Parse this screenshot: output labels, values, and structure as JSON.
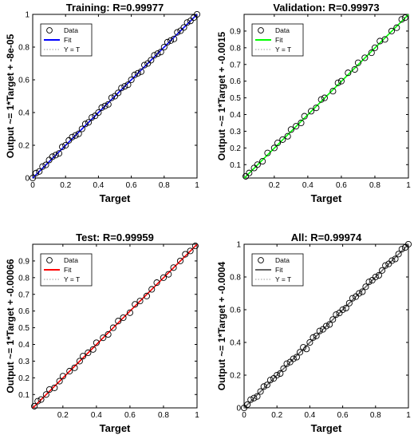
{
  "figure": {
    "panels": [
      {
        "key": "training",
        "title": "Training: R=0.99977",
        "ylabel": "Output ~= 1*Target + -8e-05",
        "xlabel": "Target",
        "xticks": [
          "0",
          "0.2",
          "0.4",
          "0.6",
          "0.8",
          "1"
        ],
        "yticks": [
          "0",
          "0.2",
          "0.4",
          "0.6",
          "0.8",
          "1"
        ],
        "legend": {
          "data": "Data",
          "fit": "Fit",
          "yt": "Y = T"
        }
      },
      {
        "key": "validation",
        "title": "Validation: R=0.99973",
        "ylabel": "Output ~= 1*Target + -0.0015",
        "xlabel": "Target",
        "xticks": [
          "0.2",
          "0.4",
          "0.6",
          "0.8",
          "1"
        ],
        "yticks": [
          "0.1",
          "0.2",
          "0.3",
          "0.4",
          "0.5",
          "0.6",
          "0.7",
          "0.8",
          "0.9"
        ],
        "legend": {
          "data": "Data",
          "fit": "Fit",
          "yt": "Y = T"
        }
      },
      {
        "key": "test",
        "title": "Test: R=0.99959",
        "ylabel": "Output ~= 1*Target + -0.00066",
        "xlabel": "Target",
        "xticks": [
          "0.2",
          "0.4",
          "0.6",
          "0.8",
          "1"
        ],
        "yticks": [
          "0.1",
          "0.2",
          "0.3",
          "0.4",
          "0.5",
          "0.6",
          "0.7",
          "0.8",
          "0.9"
        ],
        "legend": {
          "data": "Data",
          "fit": "Fit",
          "yt": "Y = T"
        }
      },
      {
        "key": "all",
        "title": "All: R=0.99974",
        "ylabel": "Output ~= 1*Target + -0.0004",
        "xlabel": "Target",
        "xticks": [
          "0",
          "0.2",
          "0.4",
          "0.6",
          "0.8",
          "1"
        ],
        "yticks": [
          "0",
          "0.2",
          "0.4",
          "0.6",
          "0.8",
          "1"
        ],
        "legend": {
          "data": "Data",
          "fit": "Fit",
          "yt": "Y = T"
        }
      }
    ]
  },
  "chart_data": [
    {
      "type": "scatter",
      "title": "Training: R=0.99977",
      "xlabel": "Target",
      "ylabel": "Output ~= 1*Target + -8e-05",
      "xlim": [
        0,
        1
      ],
      "ylim": [
        0,
        1
      ],
      "grid": false,
      "legend_position": "top-left",
      "fit": {
        "slope": 1,
        "intercept": -8e-05,
        "color": "#0000ff"
      },
      "identity_line_color": "#999999",
      "marker_color": "#000000",
      "series": [
        {
          "name": "Data",
          "x": [
            0.0,
            0.02,
            0.04,
            0.06,
            0.08,
            0.1,
            0.12,
            0.14,
            0.16,
            0.18,
            0.2,
            0.22,
            0.24,
            0.26,
            0.28,
            0.3,
            0.32,
            0.34,
            0.36,
            0.38,
            0.4,
            0.42,
            0.44,
            0.46,
            0.48,
            0.5,
            0.52,
            0.54,
            0.56,
            0.58,
            0.6,
            0.62,
            0.64,
            0.66,
            0.68,
            0.7,
            0.72,
            0.74,
            0.76,
            0.78,
            0.8,
            0.82,
            0.84,
            0.86,
            0.88,
            0.9,
            0.92,
            0.94,
            0.96,
            0.98,
            1.0
          ],
          "y": [
            0.0,
            0.03,
            0.04,
            0.07,
            0.08,
            0.11,
            0.13,
            0.14,
            0.15,
            0.19,
            0.2,
            0.23,
            0.25,
            0.26,
            0.27,
            0.3,
            0.33,
            0.34,
            0.37,
            0.38,
            0.4,
            0.43,
            0.44,
            0.45,
            0.49,
            0.5,
            0.52,
            0.55,
            0.56,
            0.57,
            0.6,
            0.63,
            0.64,
            0.65,
            0.69,
            0.7,
            0.72,
            0.75,
            0.76,
            0.77,
            0.8,
            0.83,
            0.84,
            0.85,
            0.89,
            0.9,
            0.92,
            0.95,
            0.96,
            0.98,
            1.0
          ]
        }
      ]
    },
    {
      "type": "scatter",
      "title": "Validation: R=0.99973",
      "xlabel": "Target",
      "ylabel": "Output ~= 1*Target + -0.0015",
      "xlim": [
        0.02,
        1
      ],
      "ylim": [
        0.02,
        1
      ],
      "grid": false,
      "legend_position": "top-left",
      "fit": {
        "slope": 1,
        "intercept": -0.0015,
        "color": "#00ff00"
      },
      "identity_line_color": "#999999",
      "marker_color": "#000000",
      "series": [
        {
          "name": "Data",
          "x": [
            0.03,
            0.05,
            0.08,
            0.1,
            0.13,
            0.16,
            0.2,
            0.22,
            0.25,
            0.28,
            0.3,
            0.33,
            0.36,
            0.38,
            0.42,
            0.45,
            0.48,
            0.5,
            0.55,
            0.58,
            0.6,
            0.64,
            0.68,
            0.7,
            0.74,
            0.78,
            0.8,
            0.83,
            0.86,
            0.9,
            0.93,
            0.96,
            0.98
          ],
          "y": [
            0.03,
            0.05,
            0.08,
            0.1,
            0.12,
            0.17,
            0.2,
            0.23,
            0.25,
            0.27,
            0.31,
            0.33,
            0.35,
            0.39,
            0.42,
            0.44,
            0.49,
            0.5,
            0.54,
            0.59,
            0.6,
            0.65,
            0.67,
            0.71,
            0.74,
            0.77,
            0.8,
            0.84,
            0.85,
            0.9,
            0.92,
            0.97,
            0.98
          ]
        }
      ]
    },
    {
      "type": "scatter",
      "title": "Test: R=0.99959",
      "xlabel": "Target",
      "ylabel": "Output ~= 1*Target + -0.00066",
      "xlim": [
        0.02,
        1
      ],
      "ylim": [
        0.02,
        1
      ],
      "grid": false,
      "legend_position": "top-left",
      "fit": {
        "slope": 1,
        "intercept": -0.00066,
        "color": "#ff0000"
      },
      "identity_line_color": "#999999",
      "marker_color": "#000000",
      "series": [
        {
          "name": "Data",
          "x": [
            0.03,
            0.05,
            0.07,
            0.1,
            0.12,
            0.15,
            0.18,
            0.2,
            0.24,
            0.27,
            0.3,
            0.32,
            0.35,
            0.38,
            0.4,
            0.44,
            0.47,
            0.5,
            0.53,
            0.56,
            0.6,
            0.63,
            0.66,
            0.7,
            0.73,
            0.76,
            0.8,
            0.83,
            0.86,
            0.9,
            0.93,
            0.96,
            0.99
          ],
          "y": [
            0.03,
            0.06,
            0.07,
            0.1,
            0.13,
            0.14,
            0.18,
            0.21,
            0.24,
            0.26,
            0.3,
            0.33,
            0.35,
            0.37,
            0.41,
            0.44,
            0.46,
            0.5,
            0.54,
            0.56,
            0.59,
            0.64,
            0.66,
            0.69,
            0.73,
            0.77,
            0.8,
            0.82,
            0.86,
            0.9,
            0.94,
            0.96,
            0.99
          ]
        }
      ]
    },
    {
      "type": "scatter",
      "title": "All: R=0.99974",
      "xlabel": "Target",
      "ylabel": "Output ~= 1*Target + -0.0004",
      "xlim": [
        0,
        1
      ],
      "ylim": [
        0,
        1
      ],
      "grid": false,
      "legend_position": "top-left",
      "fit": {
        "slope": 1,
        "intercept": -0.0004,
        "color": "#666666"
      },
      "identity_line_color": "#999999",
      "marker_color": "#000000",
      "series": [
        {
          "name": "Data",
          "x": [
            0.0,
            0.02,
            0.04,
            0.06,
            0.08,
            0.1,
            0.12,
            0.14,
            0.16,
            0.18,
            0.2,
            0.22,
            0.24,
            0.26,
            0.28,
            0.3,
            0.32,
            0.34,
            0.36,
            0.38,
            0.4,
            0.42,
            0.44,
            0.46,
            0.48,
            0.5,
            0.52,
            0.54,
            0.56,
            0.58,
            0.6,
            0.62,
            0.64,
            0.66,
            0.68,
            0.7,
            0.72,
            0.74,
            0.76,
            0.78,
            0.8,
            0.82,
            0.84,
            0.86,
            0.88,
            0.9,
            0.92,
            0.94,
            0.96,
            0.98,
            1.0
          ],
          "y": [
            0.0,
            0.02,
            0.05,
            0.06,
            0.07,
            0.1,
            0.13,
            0.14,
            0.17,
            0.18,
            0.2,
            0.21,
            0.24,
            0.27,
            0.28,
            0.3,
            0.31,
            0.34,
            0.37,
            0.36,
            0.4,
            0.43,
            0.44,
            0.47,
            0.48,
            0.5,
            0.51,
            0.54,
            0.57,
            0.58,
            0.6,
            0.61,
            0.64,
            0.67,
            0.68,
            0.7,
            0.71,
            0.74,
            0.77,
            0.78,
            0.8,
            0.81,
            0.84,
            0.87,
            0.88,
            0.9,
            0.91,
            0.94,
            0.97,
            0.98,
            1.0
          ]
        }
      ]
    }
  ]
}
